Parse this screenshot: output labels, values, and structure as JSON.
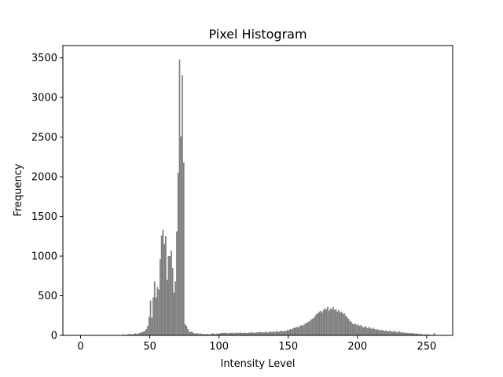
{
  "chart_data": {
    "type": "histogram",
    "title": "Pixel Histogram",
    "x_label": "Intensity Level",
    "y_label": "Frequency",
    "color": "#808080",
    "bins": [
      0,
      1,
      2,
      3,
      4,
      5,
      6,
      7,
      8,
      9,
      10,
      11,
      12,
      13,
      14,
      15,
      16,
      17,
      18,
      19,
      20,
      21,
      22,
      23,
      24,
      25,
      26,
      27,
      28,
      29,
      30,
      31,
      32,
      33,
      34,
      35,
      36,
      37,
      38,
      39,
      40,
      41,
      42,
      43,
      44,
      45,
      46,
      47,
      48,
      49,
      50,
      51,
      52,
      53,
      54,
      55,
      56,
      57,
      58,
      59,
      60,
      61,
      62,
      63,
      64,
      65,
      66,
      67,
      68,
      69,
      70,
      71,
      72,
      73,
      74,
      75,
      76,
      77,
      78,
      79,
      80,
      81,
      82,
      83,
      84,
      85,
      86,
      87,
      88,
      89,
      90,
      91,
      92,
      93,
      94,
      95,
      96,
      97,
      98,
      99,
      100,
      101,
      102,
      103,
      104,
      105,
      106,
      107,
      108,
      109,
      110,
      111,
      112,
      113,
      114,
      115,
      116,
      117,
      118,
      119,
      120,
      121,
      122,
      123,
      124,
      125,
      126,
      127,
      128,
      129,
      130,
      131,
      132,
      133,
      134,
      135,
      136,
      137,
      138,
      139,
      140,
      141,
      142,
      143,
      144,
      145,
      146,
      147,
      148,
      149,
      150,
      151,
      152,
      153,
      154,
      155,
      156,
      157,
      158,
      159,
      160,
      161,
      162,
      163,
      164,
      165,
      166,
      167,
      168,
      169,
      170,
      171,
      172,
      173,
      174,
      175,
      176,
      177,
      178,
      179,
      180,
      181,
      182,
      183,
      184,
      185,
      186,
      187,
      188,
      189,
      190,
      191,
      192,
      193,
      194,
      195,
      196,
      197,
      198,
      199,
      200,
      201,
      202,
      203,
      204,
      205,
      206,
      207,
      208,
      209,
      210,
      211,
      212,
      213,
      214,
      215,
      216,
      217,
      218,
      219,
      220,
      221,
      222,
      223,
      224,
      225,
      226,
      227,
      228,
      229,
      230,
      231,
      232,
      233,
      234,
      235,
      236,
      237,
      238,
      239,
      240,
      241,
      242,
      243,
      244,
      245,
      246,
      247,
      248,
      249,
      250,
      251,
      252,
      253,
      254,
      255,
      256
    ],
    "counts": [
      0,
      0,
      0,
      0,
      0,
      0,
      0,
      0,
      0,
      0,
      0,
      0,
      0,
      0,
      0,
      0,
      0,
      0,
      0,
      0,
      0,
      0,
      0,
      0,
      0,
      0,
      0,
      0,
      0,
      0,
      15,
      5,
      10,
      8,
      12,
      20,
      15,
      10,
      18,
      25,
      20,
      15,
      30,
      35,
      40,
      50,
      60,
      80,
      120,
      230,
      440,
      220,
      480,
      680,
      480,
      610,
      580,
      960,
      1260,
      1330,
      1150,
      1250,
      700,
      1000,
      1000,
      1070,
      850,
      540,
      680,
      1310,
      2050,
      3480,
      2510,
      3280,
      2180,
      140,
      120,
      80,
      50,
      40,
      50,
      30,
      25,
      20,
      30,
      15,
      25,
      15,
      20,
      15,
      15,
      20,
      15,
      10,
      20,
      25,
      20,
      15,
      25,
      20,
      25,
      30,
      30,
      30,
      35,
      30,
      25,
      30,
      30,
      35,
      25,
      30,
      35,
      30,
      30,
      35,
      30,
      30,
      35,
      30,
      30,
      35,
      35,
      40,
      35,
      30,
      35,
      40,
      35,
      45,
      40,
      35,
      40,
      45,
      40,
      35,
      50,
      45,
      40,
      50,
      45,
      55,
      50,
      45,
      60,
      55,
      50,
      60,
      55,
      70,
      65,
      80,
      75,
      90,
      100,
      95,
      110,
      100,
      120,
      130,
      120,
      140,
      150,
      160,
      170,
      180,
      200,
      210,
      220,
      250,
      270,
      280,
      300,
      310,
      290,
      320,
      340,
      330,
      360,
      310,
      340,
      330,
      360,
      320,
      330,
      300,
      320,
      290,
      300,
      270,
      280,
      250,
      230,
      210,
      180,
      170,
      150,
      140,
      150,
      130,
      140,
      120,
      130,
      110,
      100,
      120,
      100,
      90,
      110,
      90,
      80,
      95,
      80,
      70,
      80,
      70,
      60,
      70,
      65,
      55,
      60,
      55,
      50,
      60,
      50,
      45,
      55,
      50,
      40,
      45,
      50,
      35,
      40,
      35,
      30,
      35,
      30,
      25,
      30,
      25,
      30,
      20,
      25,
      20,
      15,
      20,
      15,
      10,
      15,
      10,
      12,
      8,
      10,
      5,
      8,
      30
    ],
    "xlim": [
      -12.8,
      268.8
    ],
    "ylim": [
      0,
      3655
    ],
    "xticks": [
      0,
      50,
      100,
      150,
      200,
      250
    ],
    "yticks": [
      0,
      500,
      1000,
      1500,
      2000,
      2500,
      3000,
      3500
    ]
  }
}
